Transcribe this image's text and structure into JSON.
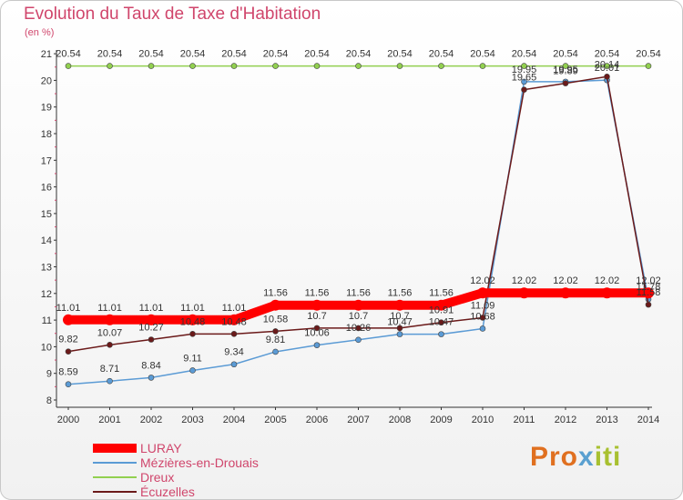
{
  "header": {
    "title": "Evolution du Taux de Taxe d'Habitation",
    "subtitle": "(en %)"
  },
  "brand": {
    "part1": "Pro",
    "part2": "x",
    "part3": "iti"
  },
  "chart_data": {
    "type": "line",
    "title": "Evolution du Taux de Taxe d'Habitation",
    "subtitle": "(en %)",
    "xlabel": "",
    "ylabel": "(en %)",
    "x": [
      "2000",
      "2001",
      "2002",
      "2003",
      "2004",
      "2005",
      "2006",
      "2007",
      "2008",
      "2009",
      "2010",
      "2011",
      "2012",
      "2013",
      "2014"
    ],
    "ylim": [
      8,
      21
    ],
    "yticks": [
      8,
      9,
      10,
      11,
      12,
      13,
      14,
      15,
      16,
      17,
      18,
      19,
      20,
      21
    ],
    "grid": false,
    "legend_position": "bottom-left",
    "series": [
      {
        "name": "LURAY",
        "color": "#ff0000",
        "values": [
          11.01,
          11.01,
          11.01,
          11.01,
          11.01,
          11.56,
          11.56,
          11.56,
          11.56,
          11.56,
          12.02,
          12.02,
          12.02,
          12.02,
          12.02
        ],
        "labels": [
          "11.01",
          "11.01",
          "11.01",
          "11.01",
          "11.01",
          "11.56",
          "11.56",
          "11.56",
          "11.56",
          "11.56",
          "12.02",
          "12.02",
          "12.02",
          "12.02",
          "12.02"
        ]
      },
      {
        "name": "Mézières-en-Drouais",
        "color": "#5b9bd5",
        "values": [
          8.59,
          8.71,
          8.84,
          9.11,
          9.34,
          9.81,
          10.06,
          10.26,
          10.47,
          10.47,
          10.68,
          19.95,
          19.95,
          20.01,
          11.78
        ],
        "labels": [
          "8.59",
          "8.71",
          "8.84",
          "9.11",
          "9.34",
          "9.81",
          "10.06",
          "10.26",
          "10.47",
          "10.47",
          "10.68",
          "19.95",
          "19.95",
          "20.01",
          "11.78"
        ]
      },
      {
        "name": "Dreux",
        "color": "#92d050",
        "values": [
          20.54,
          20.54,
          20.54,
          20.54,
          20.54,
          20.54,
          20.54,
          20.54,
          20.54,
          20.54,
          20.54,
          20.54,
          20.54,
          20.54,
          20.54
        ],
        "labels": [
          "20.54",
          "20.54",
          "20.54",
          "20.54",
          "20.54",
          "20.54",
          "20.54",
          "20.54",
          "20.54",
          "20.54",
          "20.54",
          "20.54",
          "20.54",
          "20.54",
          "20.54"
        ]
      },
      {
        "name": "Écuzelles",
        "color": "#6b1a1a",
        "values": [
          9.82,
          10.07,
          10.27,
          10.48,
          10.48,
          10.58,
          10.7,
          10.7,
          10.7,
          10.91,
          11.09,
          19.65,
          19.89,
          20.14,
          11.58
        ],
        "labels": [
          "9.82",
          "10.07",
          "10.27",
          "10.48",
          "10.48",
          "10.58",
          "10.7",
          "10.7",
          "10.7",
          "10.91",
          "11.09",
          "19.65",
          "19.89",
          "20.14",
          "11.58"
        ]
      }
    ]
  }
}
